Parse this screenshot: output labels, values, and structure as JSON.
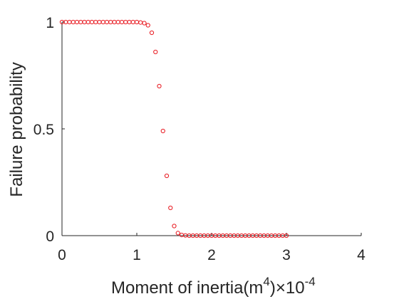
{
  "chart_data": {
    "type": "scatter",
    "title": "",
    "xlabel": "Moment of inertia(m",
    "xlabel_superscript": "4",
    "xlabel_close": ")",
    "x_multiplier_base": "×10",
    "x_multiplier_exponent": "-4",
    "ylabel": "Failure probability",
    "xlim": [
      0,
      4
    ],
    "ylim": [
      0,
      1
    ],
    "xticks": [
      "0",
      "1",
      "2",
      "3",
      "4"
    ],
    "yticks": [
      "0",
      "0.5",
      "1"
    ],
    "grid": false,
    "marker": "circle",
    "marker_color": "#e8181f",
    "x": [
      0.0,
      0.05,
      0.1,
      0.15,
      0.2,
      0.25,
      0.3,
      0.35,
      0.4,
      0.45,
      0.5,
      0.55,
      0.6,
      0.65,
      0.7,
      0.75,
      0.8,
      0.85,
      0.9,
      0.95,
      1.0,
      1.05,
      1.1,
      1.15,
      1.2,
      1.25,
      1.3,
      1.35,
      1.4,
      1.45,
      1.5,
      1.55,
      1.6,
      1.65,
      1.7,
      1.75,
      1.8,
      1.85,
      1.9,
      1.95,
      2.0,
      2.05,
      2.1,
      2.15,
      2.2,
      2.25,
      2.3,
      2.35,
      2.4,
      2.45,
      2.5,
      2.55,
      2.6,
      2.65,
      2.7,
      2.75,
      2.8,
      2.85,
      2.9,
      2.95,
      3.0
    ],
    "y": [
      1.0,
      1.0,
      1.0,
      1.0,
      1.0,
      1.0,
      1.0,
      1.0,
      1.0,
      1.0,
      1.0,
      1.0,
      1.0,
      1.0,
      1.0,
      1.0,
      1.0,
      1.0,
      1.0,
      1.0,
      1.0,
      0.998,
      0.995,
      0.985,
      0.95,
      0.86,
      0.7,
      0.49,
      0.28,
      0.13,
      0.045,
      0.012,
      0.003,
      0.001,
      0.0,
      0.0,
      0.0,
      0.0,
      0.0,
      0.0,
      0.0,
      0.0,
      0.0,
      0.0,
      0.0,
      0.0,
      0.0,
      0.0,
      0.0,
      0.0,
      0.0,
      0.0,
      0.0,
      0.0,
      0.0,
      0.0,
      0.0,
      0.0,
      0.0,
      0.0,
      0.0
    ]
  }
}
